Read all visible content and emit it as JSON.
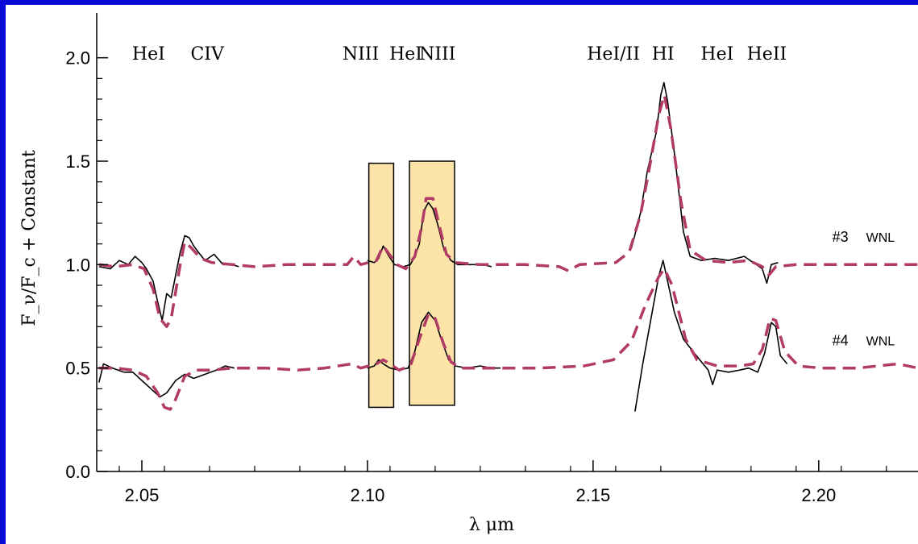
{
  "chart_data": {
    "type": "line",
    "title": "",
    "xlabel": "λ μm",
    "ylabel": "F_ν/F_c + Constant",
    "xlim": [
      2.04,
      2.222
    ],
    "ylim": [
      0.0,
      2.1
    ],
    "x_ticks": [
      "2.05",
      "2.10",
      "2.15",
      "2.20"
    ],
    "x_tick_values": [
      2.05,
      2.1,
      2.15,
      2.2
    ],
    "y_ticks": [
      "0.0",
      "0.5",
      "1.0",
      "1.5",
      "2.0"
    ],
    "y_tick_values": [
      0.0,
      0.5,
      1.0,
      1.5,
      2.0
    ],
    "grid": false,
    "line_labels": [
      {
        "text": "HeI",
        "x": 2.0515
      },
      {
        "text": "CIV",
        "x": 2.0645
      },
      {
        "text": "NIII",
        "x": 2.0985
      },
      {
        "text": "HeI",
        "x": 2.1085
      },
      {
        "text": "NIII",
        "x": 2.1155
      },
      {
        "text": "HeI/II",
        "x": 2.1545
      },
      {
        "text": "HI",
        "x": 2.1655
      },
      {
        "text": "HeI",
        "x": 2.1775
      },
      {
        "text": "HeII",
        "x": 2.1885
      }
    ],
    "highlight_boxes": [
      {
        "x0": 2.1003,
        "x1": 2.1058,
        "y0": 0.31,
        "y1": 1.49
      },
      {
        "x0": 2.1093,
        "x1": 2.1193,
        "y0": 0.32,
        "y1": 1.5
      }
    ],
    "series_labels": [
      {
        "text": "#3",
        "tag": "WNL",
        "x": 2.203,
        "y": 1.11
      },
      {
        "text": "#4",
        "tag": "WNL",
        "x": 2.203,
        "y": 0.61
      }
    ],
    "series": [
      {
        "style": "observed",
        "color": "#000000",
        "segments": [
          [
            [
              2.0405,
              0.99
            ],
            [
              2.043,
              0.98
            ],
            [
              2.045,
              1.02
            ],
            [
              2.047,
              1.0
            ],
            [
              2.0485,
              1.04
            ],
            [
              2.05,
              1.01
            ],
            [
              2.051,
              0.98
            ],
            [
              2.0525,
              0.92
            ],
            [
              2.0535,
              0.82
            ],
            [
              2.0545,
              0.73
            ],
            [
              2.0555,
              0.86
            ],
            [
              2.0565,
              0.84
            ],
            [
              2.0575,
              0.95
            ],
            [
              2.0585,
              1.06
            ],
            [
              2.0595,
              1.14
            ],
            [
              2.0605,
              1.13
            ],
            [
              2.0615,
              1.09
            ],
            [
              2.0625,
              1.06
            ],
            [
              2.064,
              1.02
            ],
            [
              2.066,
              1.05
            ],
            [
              2.068,
              1.0
            ],
            [
              2.07,
              1.0
            ],
            [
              2.0715,
              0.99
            ]
          ],
          [
            [
              2.1,
              1.02
            ],
            [
              2.1015,
              1.01
            ],
            [
              2.1025,
              1.03
            ],
            [
              2.1035,
              1.09
            ],
            [
              2.1045,
              1.05
            ],
            [
              2.106,
              1.0
            ],
            [
              2.108,
              0.99
            ],
            [
              2.1095,
              1.0
            ],
            [
              2.1105,
              1.04
            ],
            [
              2.1115,
              1.1
            ],
            [
              2.1125,
              1.26
            ],
            [
              2.1135,
              1.3
            ],
            [
              2.1145,
              1.27
            ],
            [
              2.1155,
              1.2
            ],
            [
              2.117,
              1.07
            ],
            [
              2.1185,
              1.02
            ],
            [
              2.12,
              1.0
            ],
            [
              2.123,
              1.0
            ],
            [
              2.1255,
              1.0
            ],
            [
              2.1275,
              0.99
            ]
          ],
          [
            [
              2.1585,
              1.08
            ],
            [
              2.1605,
              1.25
            ],
            [
              2.162,
              1.45
            ],
            [
              2.164,
              1.64
            ],
            [
              2.165,
              1.82
            ],
            [
              2.1657,
              1.88
            ],
            [
              2.1665,
              1.79
            ],
            [
              2.168,
              1.54
            ],
            [
              2.17,
              1.16
            ],
            [
              2.1715,
              1.04
            ],
            [
              2.174,
              1.02
            ],
            [
              2.177,
              1.03
            ],
            [
              2.18,
              1.02
            ],
            [
              2.1835,
              1.04
            ],
            [
              2.1855,
              1.01
            ],
            [
              2.1875,
              0.98
            ],
            [
              2.1885,
              0.91
            ],
            [
              2.1895,
              1.0
            ],
            [
              2.191,
              1.01
            ]
          ]
        ]
      },
      {
        "style": "observed",
        "color": "#000000",
        "segments": [
          [
            [
              2.0405,
              0.43
            ],
            [
              2.0415,
              0.52
            ],
            [
              2.0435,
              0.5
            ],
            [
              2.046,
              0.48
            ],
            [
              2.048,
              0.48
            ],
            [
              2.05,
              0.44
            ],
            [
              2.052,
              0.4
            ],
            [
              2.054,
              0.36
            ],
            [
              2.0555,
              0.38
            ],
            [
              2.0575,
              0.44
            ],
            [
              2.0595,
              0.47
            ],
            [
              2.0615,
              0.45
            ],
            [
              2.064,
              0.47
            ],
            [
              2.0665,
              0.49
            ],
            [
              2.0685,
              0.51
            ],
            [
              2.0705,
              0.5
            ]
          ],
          [
            [
              2.1,
              0.5
            ],
            [
              2.1015,
              0.51
            ],
            [
              2.1025,
              0.54
            ],
            [
              2.1035,
              0.52
            ],
            [
              2.105,
              0.5
            ],
            [
              2.107,
              0.49
            ],
            [
              2.109,
              0.5
            ],
            [
              2.1105,
              0.58
            ],
            [
              2.112,
              0.72
            ],
            [
              2.1135,
              0.77
            ],
            [
              2.115,
              0.73
            ],
            [
              2.1165,
              0.63
            ],
            [
              2.118,
              0.54
            ],
            [
              2.1195,
              0.51
            ],
            [
              2.122,
              0.5
            ],
            [
              2.125,
              0.51
            ],
            [
              2.1275,
              0.5
            ],
            [
              2.1295,
              0.5
            ]
          ],
          [
            [
              2.1593,
              0.29
            ],
            [
              2.161,
              0.52
            ],
            [
              2.1625,
              0.7
            ],
            [
              2.1645,
              0.94
            ],
            [
              2.1655,
              1.02
            ],
            [
              2.1665,
              0.92
            ],
            [
              2.168,
              0.77
            ],
            [
              2.17,
              0.64
            ],
            [
              2.1725,
              0.57
            ],
            [
              2.1755,
              0.49
            ],
            [
              2.1765,
              0.42
            ],
            [
              2.1775,
              0.49
            ],
            [
              2.18,
              0.48
            ],
            [
              2.1825,
              0.49
            ],
            [
              2.1845,
              0.5
            ],
            [
              2.1865,
              0.48
            ],
            [
              2.188,
              0.57
            ],
            [
              2.1895,
              0.72
            ],
            [
              2.1905,
              0.7
            ],
            [
              2.1915,
              0.56
            ],
            [
              2.193,
              0.52
            ]
          ]
        ]
      },
      {
        "style": "model",
        "color": "#b23a66",
        "segments": [
          [
            [
              2.0405,
              1.0
            ],
            [
              2.044,
              0.99
            ],
            [
              2.048,
              1.0
            ],
            [
              2.0505,
              0.98
            ],
            [
              2.0525,
              0.88
            ],
            [
              2.054,
              0.74
            ],
            [
              2.0555,
              0.7
            ],
            [
              2.0565,
              0.74
            ],
            [
              2.0585,
              1.0
            ],
            [
              2.0595,
              1.11
            ],
            [
              2.061,
              1.08
            ],
            [
              2.063,
              1.03
            ],
            [
              2.0655,
              1.01
            ],
            [
              2.07,
              1.0
            ],
            [
              2.075,
              0.99
            ],
            [
              2.082,
              1.0
            ],
            [
              2.09,
              1.0
            ],
            [
              2.0955,
              1.0
            ],
            [
              2.097,
              1.04
            ],
            [
              2.0985,
              1.0
            ],
            [
              2.102,
              1.02
            ],
            [
              2.1035,
              1.09
            ],
            [
              2.1045,
              1.06
            ],
            [
              2.1065,
              1.0
            ],
            [
              2.1085,
              0.98
            ],
            [
              2.1105,
              1.04
            ],
            [
              2.112,
              1.18
            ],
            [
              2.113,
              1.32
            ],
            [
              2.1145,
              1.32
            ],
            [
              2.116,
              1.18
            ],
            [
              2.1175,
              1.05
            ],
            [
              2.1195,
              1.01
            ],
            [
              2.125,
              1.0
            ],
            [
              2.135,
              1.0
            ],
            [
              2.1425,
              0.99
            ],
            [
              2.1445,
              0.97
            ],
            [
              2.147,
              1.0
            ],
            [
              2.155,
              1.01
            ],
            [
              2.158,
              1.06
            ],
            [
              2.1605,
              1.24
            ],
            [
              2.1625,
              1.47
            ],
            [
              2.1645,
              1.72
            ],
            [
              2.1658,
              1.82
            ],
            [
              2.1672,
              1.66
            ],
            [
              2.1695,
              1.3
            ],
            [
              2.1715,
              1.07
            ],
            [
              2.175,
              1.02
            ],
            [
              2.18,
              1.01
            ],
            [
              2.1845,
              1.02
            ],
            [
              2.1875,
              0.99
            ],
            [
              2.189,
              0.95
            ],
            [
              2.1905,
              0.99
            ],
            [
              2.195,
              1.0
            ],
            [
              2.205,
              1.0
            ],
            [
              2.215,
              1.0
            ],
            [
              2.222,
              1.0
            ]
          ]
        ]
      },
      {
        "style": "model",
        "color": "#b23a66",
        "segments": [
          [
            [
              2.0405,
              0.5
            ],
            [
              2.044,
              0.5
            ],
            [
              2.048,
              0.49
            ],
            [
              2.051,
              0.46
            ],
            [
              2.0535,
              0.38
            ],
            [
              2.055,
              0.31
            ],
            [
              2.0563,
              0.3
            ],
            [
              2.0575,
              0.35
            ],
            [
              2.0595,
              0.46
            ],
            [
              2.062,
              0.49
            ],
            [
              2.0655,
              0.49
            ],
            [
              2.07,
              0.5
            ],
            [
              2.0775,
              0.5
            ],
            [
              2.0845,
              0.49
            ],
            [
              2.0905,
              0.5
            ],
            [
              2.0965,
              0.52
            ],
            [
              2.0985,
              0.5
            ],
            [
              2.102,
              0.52
            ],
            [
              2.1035,
              0.54
            ],
            [
              2.105,
              0.52
            ],
            [
              2.107,
              0.49
            ],
            [
              2.1095,
              0.51
            ],
            [
              2.1115,
              0.64
            ],
            [
              2.1135,
              0.76
            ],
            [
              2.115,
              0.74
            ],
            [
              2.1168,
              0.62
            ],
            [
              2.1185,
              0.53
            ],
            [
              2.1205,
              0.5
            ],
            [
              2.1285,
              0.5
            ],
            [
              2.138,
              0.5
            ],
            [
              2.148,
              0.51
            ],
            [
              2.1545,
              0.54
            ],
            [
              2.1585,
              0.63
            ],
            [
              2.1615,
              0.8
            ],
            [
              2.1645,
              0.94
            ],
            [
              2.1658,
              0.98
            ],
            [
              2.1675,
              0.9
            ],
            [
              2.1705,
              0.64
            ],
            [
              2.173,
              0.54
            ],
            [
              2.1775,
              0.51
            ],
            [
              2.1825,
              0.51
            ],
            [
              2.1855,
              0.52
            ],
            [
              2.1875,
              0.59
            ],
            [
              2.1892,
              0.74
            ],
            [
              2.1905,
              0.73
            ],
            [
              2.1925,
              0.58
            ],
            [
              2.1955,
              0.51
            ],
            [
              2.2005,
              0.5
            ],
            [
              2.2085,
              0.5
            ],
            [
              2.2175,
              0.52
            ],
            [
              2.222,
              0.5
            ]
          ]
        ]
      }
    ]
  }
}
